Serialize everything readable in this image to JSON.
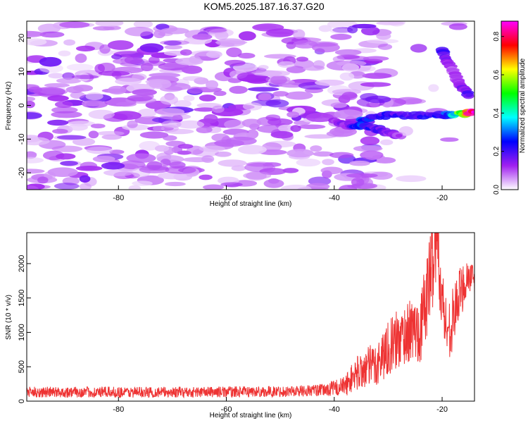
{
  "title": "KOM5.2025.187.16.37.G20",
  "chart_data": [
    {
      "type": "heatmap",
      "xlabel": "Height of straight line (km)",
      "ylabel": "Frequency (Hz)",
      "xlim": [
        -97,
        -14
      ],
      "ylim": [
        -25,
        25
      ],
      "xticks": [
        -80,
        -60,
        -40,
        -20
      ],
      "yticks": [
        -20,
        -10,
        0,
        10,
        20
      ],
      "grid": false,
      "colorbar": {
        "label": "Normalized spectral amplitude",
        "range": [
          0,
          0.88
        ],
        "ticks": [
          0.0,
          0.2,
          0.4,
          0.6,
          0.8
        ],
        "colors": [
          "#ffffff",
          "#a020f0",
          "#0000ff",
          "#00ffff",
          "#00ff00",
          "#ffff00",
          "#ff0000",
          "#ff00ff"
        ]
      },
      "background_noise": {
        "x_range": [
          -97,
          -35
        ],
        "freq_range": [
          -25,
          25
        ],
        "typical_amplitude": 0.08,
        "max_amplitude": 0.15
      },
      "features": [
        {
          "name": "signal-track-upper",
          "x": [
            -35,
            -30,
            -25,
            -20,
            -17,
            -14
          ],
          "freq": [
            -4,
            -3,
            -3,
            -3,
            -2.5,
            -2
          ],
          "amplitude": [
            0.25,
            0.22,
            0.18,
            0.25,
            0.45,
            0.88
          ]
        },
        {
          "name": "signal-track-lower",
          "x": [
            -40,
            -37,
            -35,
            -32,
            -30,
            -28
          ],
          "freq": [
            -5,
            -6,
            -6,
            -7,
            -8,
            -9
          ],
          "amplitude": [
            0.12,
            0.15,
            0.3,
            0.18,
            0.15,
            0.12
          ]
        },
        {
          "name": "rising-branch",
          "x": [
            -20,
            -19,
            -18,
            -17,
            -16,
            -15
          ],
          "freq": [
            16,
            13,
            10,
            7,
            5,
            3
          ],
          "amplitude": [
            0.2,
            0.12,
            0.1,
            0.12,
            0.15,
            0.18
          ]
        }
      ]
    },
    {
      "type": "line",
      "xlabel": "Height of straight line (km)",
      "ylabel": "SNR (10 * v/v)",
      "xlim": [
        -97,
        -14
      ],
      "ylim": [
        0,
        2450
      ],
      "xticks": [
        -80,
        -60,
        -40,
        -20
      ],
      "yticks": [
        0,
        500,
        1000,
        1500,
        2000
      ],
      "grid": false,
      "color": "#ee3333",
      "x": [
        -97,
        -90,
        -80,
        -70,
        -60,
        -50,
        -42,
        -38,
        -36,
        -34,
        -32,
        -30,
        -28,
        -26,
        -24,
        -22,
        -21,
        -20,
        -19,
        -18,
        -17,
        -16,
        -15,
        -14
      ],
      "y": [
        130,
        130,
        130,
        130,
        135,
        140,
        160,
        220,
        400,
        480,
        550,
        780,
        900,
        1020,
        1050,
        1900,
        2400,
        1450,
        1000,
        1200,
        1500,
        1700,
        1850,
        1700
      ],
      "noise_amplitude": [
        80,
        80,
        80,
        80,
        80,
        80,
        90,
        150,
        250,
        300,
        350,
        400,
        450,
        450,
        500,
        700,
        600,
        500,
        450,
        450,
        400,
        350,
        300,
        200
      ]
    }
  ]
}
